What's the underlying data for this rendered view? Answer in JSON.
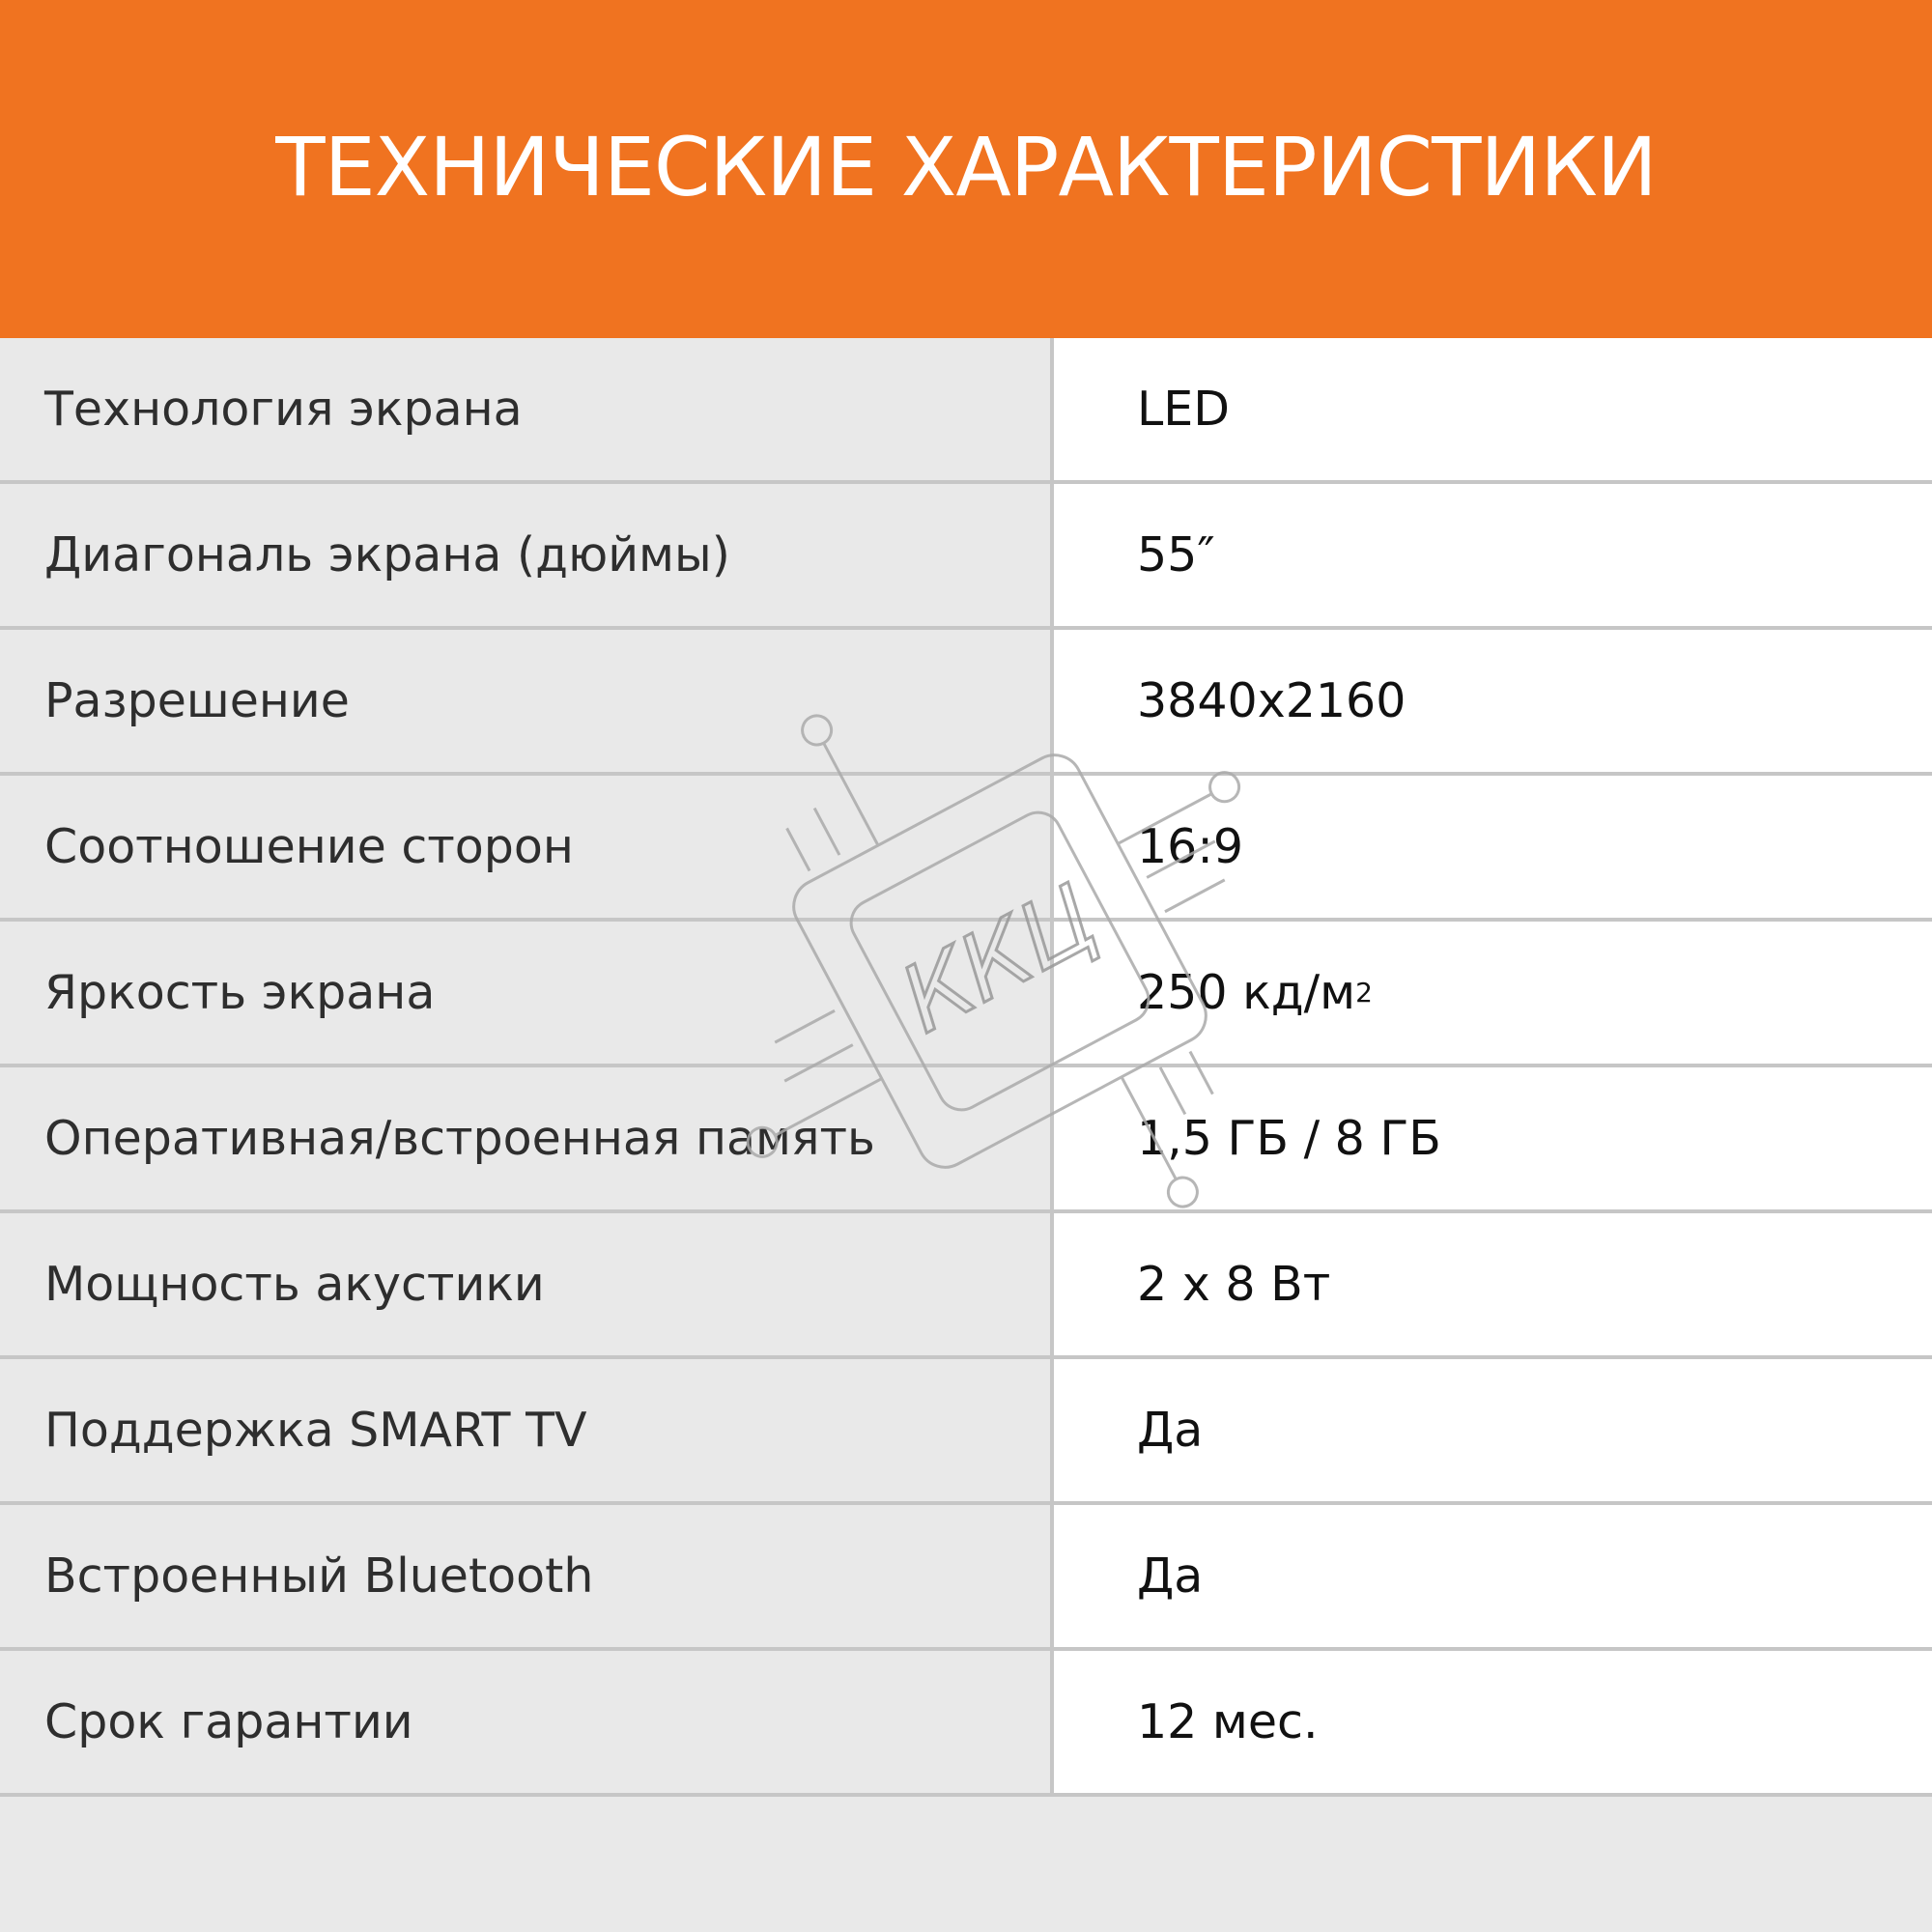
{
  "header": {
    "title": "ТЕХНИЧЕСКИЕ ХАРАКТЕРИСТИКИ"
  },
  "specs": [
    {
      "label": "Технология экрана",
      "value": "LED"
    },
    {
      "label": "Диагональ экрана (дюймы)",
      "value": "55″"
    },
    {
      "label": "Разрешение",
      "value": "3840x2160"
    },
    {
      "label": "Соотношение сторон",
      "value": "16:9"
    },
    {
      "label": "Яркость экрана",
      "value": "250 кд/м",
      "value_sup": "2"
    },
    {
      "label": "Оперативная/встроенная память",
      "value": "1,5 ГБ / 8 ГБ"
    },
    {
      "label": "Мощность акустики",
      "value": "2 x 8 Вт"
    },
    {
      "label": "Поддержка SMART TV",
      "value": "Да"
    },
    {
      "label": "Встроенный Bluetooth",
      "value": "Да"
    },
    {
      "label": "Срок гарантии",
      "value": "12 мес."
    }
  ],
  "watermark": {
    "text": "ККЦ"
  },
  "colors": {
    "accent": "#f07320",
    "label_bg": "#e9e9e9",
    "divider": "#c6c6c6"
  }
}
